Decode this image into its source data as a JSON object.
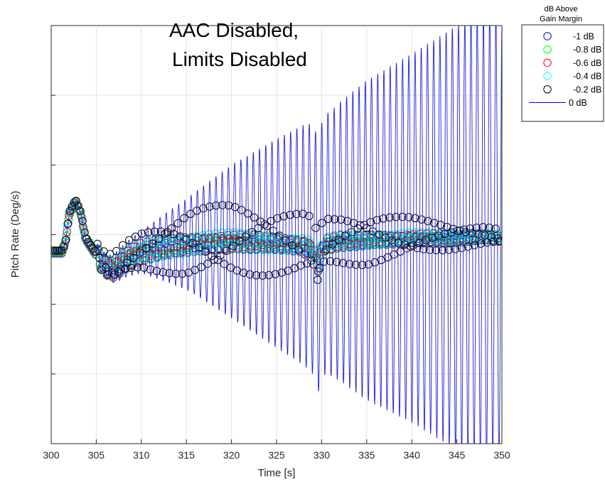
{
  "chart_data": {
    "type": "scatter",
    "title": "",
    "annotation": [
      "AAC Disabled,",
      "Limits Disabled"
    ],
    "xlabel": "Time [s]",
    "ylabel": "Pitch Rate (Deg/s)",
    "xlim": [
      300,
      350
    ],
    "xticks": [
      300,
      305,
      310,
      315,
      320,
      325,
      330,
      335,
      340,
      345,
      350
    ],
    "xtick_labels": [
      "300",
      "305",
      "310",
      "315",
      "320",
      "325",
      "330",
      "335",
      "340",
      "345",
      "350"
    ],
    "yticks_unlabeled": [
      -6,
      -4,
      -2,
      0,
      2,
      4,
      6
    ],
    "ylim": [
      -6,
      6
    ],
    "grid": true,
    "legend": {
      "title": [
        "dB Above",
        "Gain Margin"
      ],
      "placement": "outside-top-right",
      "entries": [
        {
          "label": "-1 dB",
          "marker": "circle",
          "color": "#0000ff"
        },
        {
          "label": "-0.8 dB",
          "marker": "circle",
          "color": "#00ff00"
        },
        {
          "label": "-0.6 dB",
          "marker": "circle",
          "color": "#ff0000"
        },
        {
          "label": "-0.4 dB",
          "marker": "circle",
          "color": "#00ffff"
        },
        {
          "label": "-0.2 dB",
          "marker": "circle",
          "color": "#000000"
        },
        {
          "label": "0 dB",
          "marker": "line",
          "color": "#0000ff"
        }
      ]
    },
    "series": [
      {
        "name": "0 dB",
        "style": "line",
        "color": "#1f1fd8",
        "points": [
          [
            300,
            -0.5
          ],
          [
            301.2,
            -0.5
          ],
          [
            301.6,
            -0.2
          ],
          [
            302,
            0.6
          ],
          [
            302.7,
            0.97
          ],
          [
            303.3,
            0.6
          ],
          [
            303.8,
            -0.1
          ],
          [
            304.3,
            -0.3
          ],
          [
            304.8,
            -0.5
          ],
          [
            305.2,
            -0.6
          ],
          [
            305.6,
            -0.8
          ],
          [
            306.1,
            -0.9
          ],
          [
            306.7,
            -1.0
          ],
          [
            307.4,
            -0.9
          ],
          [
            308.4,
            -0.7
          ],
          [
            310,
            -0.5
          ],
          [
            313,
            -0.35
          ],
          [
            316,
            -0.25
          ],
          [
            320,
            -0.2
          ],
          [
            325,
            -0.25
          ],
          [
            328,
            -0.3
          ],
          [
            329,
            -0.4
          ],
          [
            329.6,
            -0.9
          ],
          [
            330.2,
            -0.3
          ],
          [
            332,
            -0.2
          ],
          [
            336,
            -0.15
          ],
          [
            340,
            -0.1
          ],
          [
            345,
            -0.1
          ],
          [
            348,
            -0.05
          ],
          [
            350,
            -0.1
          ]
        ],
        "oscillation": {
          "period_s": 0.69,
          "amplitude": [
            [
              305,
              0.3
            ],
            [
              310,
              0.6
            ],
            [
              315,
              1.3
            ],
            [
              320,
              2.2
            ],
            [
              325,
              3.0
            ],
            [
              329,
              3.6
            ],
            [
              331,
              3.8
            ],
            [
              335,
              4.6
            ],
            [
              340,
              5.3
            ],
            [
              345,
              6.1
            ],
            [
              347,
              6.3
            ],
            [
              350,
              6.3
            ]
          ]
        }
      },
      {
        "name": "-0.2 dB",
        "style": "circle",
        "color": "#000000",
        "oscillation": {
          "period_s": 0.69,
          "amplitude": [
            [
              305,
              0.3
            ],
            [
              310,
              0.55
            ],
            [
              315,
              0.95
            ],
            [
              320,
              1.05
            ],
            [
              325,
              0.95
            ],
            [
              329,
              0.85
            ],
            [
              331,
              0.7
            ],
            [
              335,
              0.75
            ],
            [
              340,
              0.55
            ],
            [
              345,
              0.35
            ],
            [
              350,
              0.2
            ]
          ]
        }
      },
      {
        "name": "-0.4 dB",
        "style": "circle",
        "color": "#00e6e6",
        "oscillation": {
          "period_s": 0.69,
          "amplitude": [
            [
              305,
              0.25
            ],
            [
              310,
              0.3
            ],
            [
              320,
              0.25
            ],
            [
              330,
              0.2
            ],
            [
              340,
              0.15
            ],
            [
              350,
              0.1
            ]
          ]
        }
      },
      {
        "name": "-0.6 dB",
        "style": "circle",
        "color": "#e60000",
        "oscillation": {
          "period_s": 0.69,
          "amplitude": [
            [
              305,
              0.25
            ],
            [
              310,
              0.28
            ],
            [
              320,
              0.22
            ],
            [
              330,
              0.2
            ],
            [
              340,
              0.15
            ],
            [
              350,
              0.1
            ]
          ]
        }
      },
      {
        "name": "-0.8 dB",
        "style": "circle",
        "color": "#00cc00",
        "oscillation": {
          "period_s": 0.69,
          "amplitude": [
            [
              305,
              0.25
            ],
            [
              310,
              0.25
            ],
            [
              320,
              0.2
            ],
            [
              330,
              0.18
            ],
            [
              340,
              0.12
            ],
            [
              350,
              0.1
            ]
          ]
        }
      },
      {
        "name": "-1 dB",
        "style": "circle",
        "color": "#1a1aff",
        "oscillation": {
          "period_s": 0.69,
          "amplitude": [
            [
              305,
              0.2
            ],
            [
              310,
              0.22
            ],
            [
              320,
              0.18
            ],
            [
              330,
              0.15
            ],
            [
              340,
              0.12
            ],
            [
              350,
              0.1
            ]
          ]
        }
      }
    ]
  }
}
